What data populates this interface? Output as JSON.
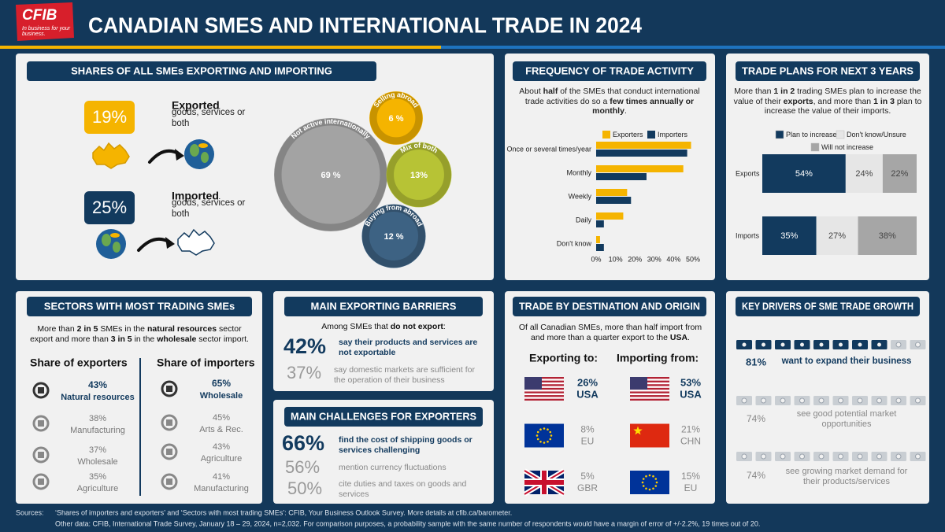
{
  "header": {
    "logo": "CFIB",
    "tagline": "In business for your business.",
    "title": "CANADIAN SMES AND INTERNATIONAL TRADE IN 2024"
  },
  "shares": {
    "title": "SHARES OF ALL SMEs EXPORTING AND IMPORTING",
    "exported": {
      "value": "19%",
      "heading": "Exported",
      "text": "goods, services or both"
    },
    "imported": {
      "value": "25%",
      "heading": "Imported",
      "text": "goods, services or both"
    }
  },
  "chart_data": [
    {
      "type": "bubble",
      "categories": [
        "Not active internationally",
        "Selling abroad",
        "Mix of both",
        "Buying from abroad"
      ],
      "values": [
        69,
        6,
        13,
        12
      ],
      "value_labels": [
        "69 %",
        "6 %",
        "13%",
        "12 %"
      ],
      "colors": [
        "#a3a3a3",
        "#f5b400",
        "#b7c335",
        "#3d6283"
      ]
    },
    {
      "type": "bar",
      "orientation": "horizontal",
      "title": "FREQUENCY OF TRADE ACTIVITY",
      "subtitle": [
        "About ",
        "half",
        " of the SMEs that conduct international trade activities do so a ",
        "few times annually or monthly",
        "."
      ],
      "categories": [
        "Once or several times/year",
        "Monthly",
        "Weekly",
        "Daily",
        "Don't know"
      ],
      "series": [
        {
          "name": "Exporters",
          "color": "#f5b400",
          "values": [
            49,
            45,
            16,
            14,
            2
          ]
        },
        {
          "name": "Importers",
          "color": "#123a5e",
          "values": [
            47,
            26,
            18,
            4,
            4
          ]
        }
      ],
      "xlim": [
        0,
        50
      ],
      "xticks": [
        {
          "value": 0,
          "label": "0%"
        },
        {
          "value": 10,
          "label": "10%"
        },
        {
          "value": 20,
          "label": "20%"
        },
        {
          "value": 30,
          "label": "30%"
        },
        {
          "value": 40,
          "label": "40%"
        },
        {
          "value": 50,
          "label": "50%"
        }
      ]
    },
    {
      "type": "stacked_bar",
      "orientation": "horizontal",
      "title": "TRADE PLANS FOR NEXT 3 YEARS",
      "subtitle": [
        "More than ",
        "1 in 2",
        " trading SMEs plan to increase the value of their ",
        "exports",
        ", and more than ",
        "1 in 3",
        " plan to increase the value of their imports."
      ],
      "categories": [
        "Exports",
        "Imports"
      ],
      "series": [
        {
          "name": "Plan to increase",
          "color": "#123a5e",
          "values": [
            54,
            35
          ],
          "value_labels": [
            "54%",
            "35%"
          ]
        },
        {
          "name": "Don't know/Unsure",
          "color": "#e6e6e6",
          "values": [
            24,
            27
          ],
          "value_labels": [
            "24%",
            "27%"
          ]
        },
        {
          "name": "Will not increase",
          "color": "#a6a6a6",
          "values": [
            22,
            38
          ],
          "value_labels": [
            "22%",
            "38%"
          ]
        }
      ],
      "xlim": [
        0,
        100
      ]
    }
  ],
  "sectors": {
    "title": "SECTORS WITH MOST TRADING SMEs",
    "subtitle": [
      "More than ",
      "2 in 5",
      " SMEs in the ",
      "natural  resources",
      " sector export and more than ",
      "3 in 5",
      " in the ",
      "wholesale",
      " sector import."
    ],
    "exporters": {
      "heading": "Share of exporters",
      "items": [
        {
          "value": "43%",
          "label": "Natural resources"
        },
        {
          "value": "38%",
          "label": "Manufacturing"
        },
        {
          "value": "37%",
          "label": "Wholesale"
        },
        {
          "value": "35%",
          "label": "Agriculture"
        }
      ]
    },
    "importers": {
      "heading": "Share of importers",
      "items": [
        {
          "value": "65%",
          "label": "Wholesale"
        },
        {
          "value": "45%",
          "label": "Arts & Rec."
        },
        {
          "value": "43%",
          "label": "Agriculture"
        },
        {
          "value": "41%",
          "label": "Manufacturing"
        }
      ]
    }
  },
  "barriers": {
    "title": "MAIN EXPORTING BARRIERS",
    "intro": [
      "Among SMEs that ",
      "do not export",
      ":"
    ],
    "items": [
      {
        "value": "42%",
        "text": "say their products and services are not exportable"
      },
      {
        "value": "37%",
        "text": "say domestic markets are sufficient for the operation of their business"
      }
    ]
  },
  "challenges": {
    "title": "MAIN CHALLENGES FOR EXPORTERS",
    "items": [
      {
        "value": "66%",
        "text": "find the cost of shipping goods or services challenging"
      },
      {
        "value": "56%",
        "text": "mention currency fluctuations"
      },
      {
        "value": "50%",
        "text": "cite duties and taxes on goods and services"
      }
    ]
  },
  "destination": {
    "title": "TRADE BY DESTINATION AND ORIGIN",
    "intro": [
      "Of  all Canadian SMEs,  more than half import from and more than a quarter export to the ",
      "USA",
      "."
    ],
    "exporting": {
      "heading": "Exporting to:",
      "items": [
        {
          "value": "26%",
          "label": "USA"
        },
        {
          "value": "8%",
          "label": "EU"
        },
        {
          "value": "5%",
          "label": "GBR"
        }
      ]
    },
    "importing": {
      "heading": "Importing from:",
      "items": [
        {
          "value": "53%",
          "label": "USA"
        },
        {
          "value": "21%",
          "label": "CHN"
        },
        {
          "value": "15%",
          "label": "EU"
        }
      ]
    }
  },
  "drivers": {
    "title": "KEY DRIVERS OF SME TRADE GROWTH",
    "items": [
      {
        "value": "81%",
        "text": "want to expand their business"
      },
      {
        "value": "74%",
        "text": "see good potential market opportunities"
      },
      {
        "value": "74%",
        "text": "see growing market demand for their products/services"
      }
    ]
  },
  "footer": {
    "label": "Sources:",
    "lines": [
      "‘Shares of importers and exporters’ and ‘Sectors with most trading SMEs’: CFIB, Your Business Outlook Survey.  More details at cfib.ca/barometer.",
      "Other data:  CFIB, International Trade Survey, January 18 – 29, 2024, n=2,032.  For comparison purposes, a probability sample with the same number of respondents would have a margin of error of +/-2.2%, 19 times out of 20."
    ]
  }
}
